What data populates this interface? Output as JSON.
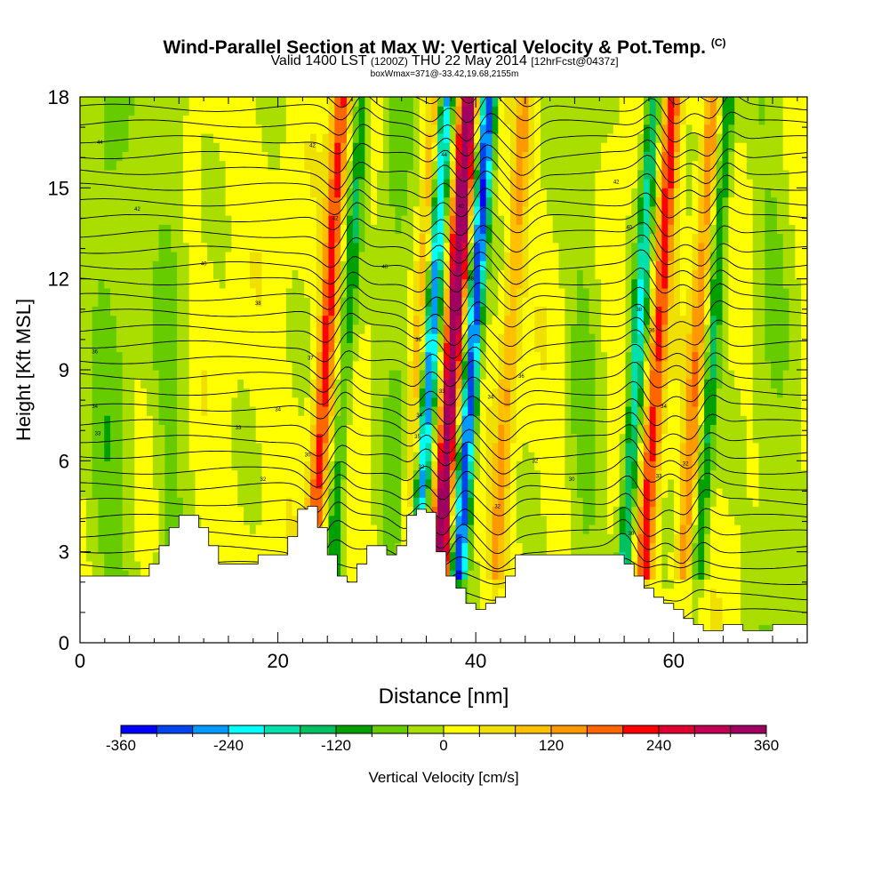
{
  "header": {
    "title": "Wind-Parallel Section at Max W: Vertical Velocity & Pot.Temp.",
    "title_mark": "(C)",
    "subtitle_main": "Valid 1400 LST",
    "subtitle_utc": "(1200Z)",
    "subtitle_date": "THU 22 May 2014",
    "subtitle_fcst": "[12hrFcst@0437z]",
    "subtitle_box": "boxWmax=371@-33.42,19.68,2155m"
  },
  "chart_data": {
    "type": "heatmap",
    "xlabel": "Distance [nm]",
    "ylabel": "Height [Kft MSL]",
    "xlim": [
      0,
      73.5
    ],
    "ylim": [
      0,
      18
    ],
    "x_ticks": [
      0,
      20,
      40,
      60
    ],
    "y_ticks": [
      0,
      3,
      6,
      9,
      12,
      15,
      18
    ],
    "colorbar": {
      "label": "Vertical Velocity [cm/s]",
      "range": [
        -360,
        360
      ],
      "step": 40,
      "tick_values": [
        -360,
        -240,
        -120,
        0,
        120,
        240,
        360
      ],
      "tick_labels": [
        "-360",
        "-240",
        "-120",
        "0",
        "120",
        "240",
        "360"
      ],
      "colors": [
        "#0000ff",
        "#0044ee",
        "#0099ff",
        "#00ffff",
        "#00e0aa",
        "#00c060",
        "#00a000",
        "#66cc00",
        "#aadd00",
        "#ffff00",
        "#f0e000",
        "#ffc000",
        "#ff9900",
        "#ff6600",
        "#ff0000",
        "#e00030",
        "#c00050",
        "#a00060"
      ]
    },
    "updraft_cores": [
      {
        "x": 24.0,
        "w_max": 200
      },
      {
        "x": 33.5,
        "w_max": 120
      },
      {
        "x": 36.8,
        "w_max": 371
      },
      {
        "x": 42.5,
        "w_max": 110
      },
      {
        "x": 57.5,
        "w_max": 200
      },
      {
        "x": 61.5,
        "w_max": 140
      }
    ],
    "downdraft_cores": [
      {
        "x": 26.0,
        "w_min": -120
      },
      {
        "x": 38.8,
        "w_min": -330
      },
      {
        "x": 34.5,
        "w_min": -300
      },
      {
        "x": 55.5,
        "w_min": -200
      },
      {
        "x": 63.0,
        "w_min": -140
      }
    ],
    "terrain": {
      "x": [
        0,
        6,
        7,
        8,
        9,
        10,
        11,
        12,
        13,
        14,
        15,
        16,
        17,
        18,
        19,
        20,
        21,
        22,
        23,
        24,
        25,
        26,
        27,
        28,
        29,
        30,
        31,
        32,
        33,
        34,
        35,
        36,
        37,
        38,
        39,
        40,
        41,
        42,
        43,
        44,
        45,
        46,
        50,
        54,
        55,
        56,
        57,
        58,
        59,
        60,
        61,
        62,
        63,
        64,
        65,
        66,
        67,
        68,
        69,
        70,
        73.5
      ],
      "height": [
        2.2,
        2.2,
        2.6,
        3.2,
        3.8,
        4.2,
        4.2,
        3.8,
        3.2,
        2.6,
        2.6,
        2.6,
        2.6,
        2.9,
        2.9,
        2.9,
        3.5,
        4.4,
        4.5,
        3.8,
        2.9,
        2.2,
        2.0,
        2.6,
        3.2,
        3.2,
        2.9,
        3.2,
        4.2,
        4.4,
        4.3,
        3.0,
        2.2,
        1.8,
        1.3,
        1.1,
        1.3,
        1.5,
        2.2,
        2.9,
        2.9,
        2.9,
        2.9,
        2.9,
        2.6,
        2.2,
        1.8,
        1.5,
        1.3,
        1.1,
        0.8,
        0.6,
        0.4,
        0.4,
        0.6,
        0.6,
        0.4,
        0.4,
        0.4,
        0.6,
        0.6
      ]
    },
    "theta_labels": [
      {
        "x": 2,
        "y": 16.5,
        "text": "44"
      },
      {
        "x": 5.8,
        "y": 14.3,
        "text": "42"
      },
      {
        "x": 12.5,
        "y": 12.5,
        "text": "40"
      },
      {
        "x": 18,
        "y": 11.2,
        "text": "38"
      },
      {
        "x": 1.5,
        "y": 9.6,
        "text": "36"
      },
      {
        "x": 1.5,
        "y": 7.8,
        "text": "34"
      },
      {
        "x": 1.8,
        "y": 6.9,
        "text": "33"
      },
      {
        "x": 20,
        "y": 7.7,
        "text": "34"
      },
      {
        "x": 16,
        "y": 7.1,
        "text": "33"
      },
      {
        "x": 23,
        "y": 6.2,
        "text": "30"
      },
      {
        "x": 18.5,
        "y": 5.4,
        "text": "32"
      },
      {
        "x": 23.3,
        "y": 9.4,
        "text": "37"
      },
      {
        "x": 23.5,
        "y": 16.4,
        "text": "42"
      },
      {
        "x": 25.8,
        "y": 14.0,
        "text": "42"
      },
      {
        "x": 30.8,
        "y": 12.4,
        "text": "40"
      },
      {
        "x": 34.2,
        "y": 10.0,
        "text": "36"
      },
      {
        "x": 36.8,
        "y": 16.1,
        "text": "44"
      },
      {
        "x": 38.5,
        "y": 14.4,
        "text": "40"
      },
      {
        "x": 39.5,
        "y": 12.0,
        "text": "38"
      },
      {
        "x": 36.6,
        "y": 8.3,
        "text": "33"
      },
      {
        "x": 34.3,
        "y": 7.5,
        "text": "34"
      },
      {
        "x": 34.1,
        "y": 6.8,
        "text": "35"
      },
      {
        "x": 34.5,
        "y": 5.8,
        "text": "32"
      },
      {
        "x": 41.5,
        "y": 8.1,
        "text": "34"
      },
      {
        "x": 44.6,
        "y": 8.8,
        "text": "36"
      },
      {
        "x": 46,
        "y": 6.0,
        "text": "32"
      },
      {
        "x": 49.7,
        "y": 5.4,
        "text": "30"
      },
      {
        "x": 42.2,
        "y": 4.5,
        "text": "32"
      },
      {
        "x": 54.2,
        "y": 15.2,
        "text": "42"
      },
      {
        "x": 55.5,
        "y": 13.7,
        "text": "40"
      },
      {
        "x": 56.5,
        "y": 11.0,
        "text": "38"
      },
      {
        "x": 57.8,
        "y": 10.3,
        "text": "36"
      },
      {
        "x": 59.0,
        "y": 7.8,
        "text": "34"
      },
      {
        "x": 58.5,
        "y": 5.5,
        "text": "33"
      },
      {
        "x": 61.2,
        "y": 5.9,
        "text": "32"
      },
      {
        "x": 55.7,
        "y": 3.6,
        "text": "30"
      }
    ]
  }
}
